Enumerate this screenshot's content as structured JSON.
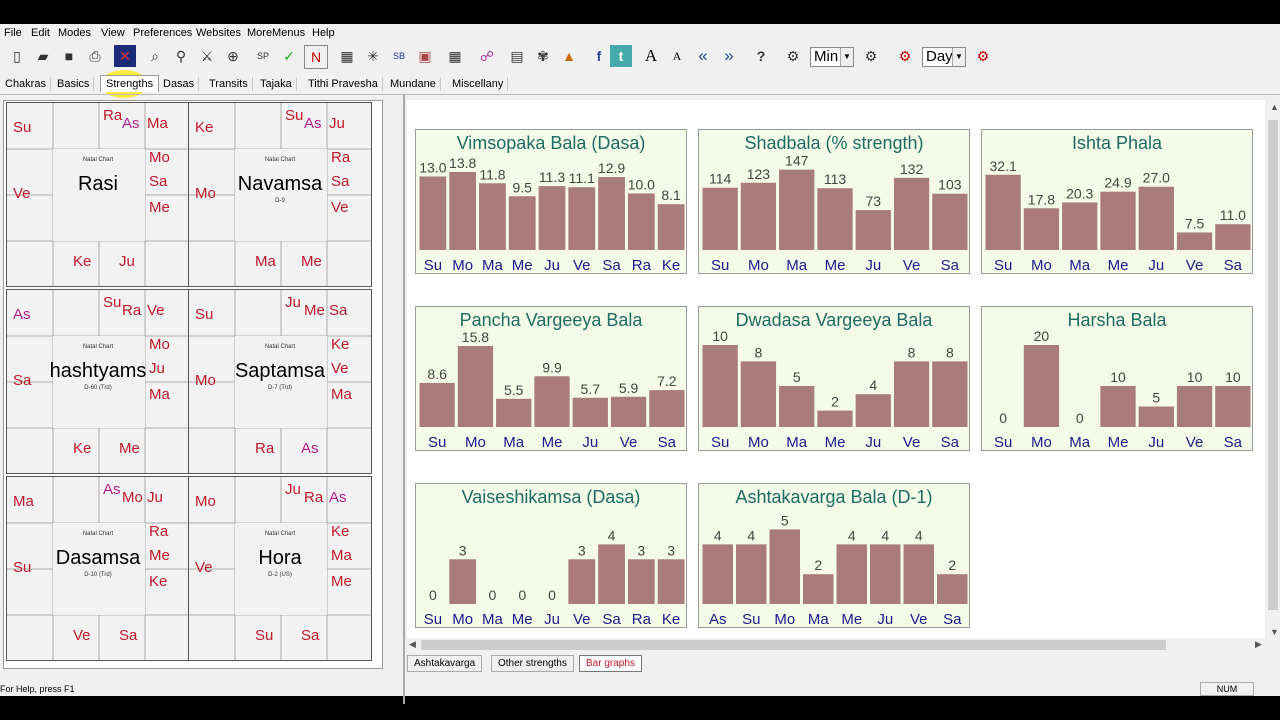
{
  "menu": [
    "File",
    "Edit",
    "Modes",
    "View",
    "Preferences",
    "Websites",
    "MoreMenus",
    "Help"
  ],
  "toolbar": {
    "min_label": "Min",
    "day_label": "Day",
    "font_big": "A",
    "font_small": "A",
    "nav_prev": "«",
    "nav_next": "»",
    "help": "?"
  },
  "tabs": [
    "Chakras",
    "Basics",
    "Strengths",
    "Dasas",
    "Transits",
    "Tajaka",
    "Tithi Pravesha",
    "Mundane",
    "Miscellany"
  ],
  "active_tab": "Strengths",
  "charts": [
    {
      "name": "Rasi",
      "sub": "",
      "nc": "Natal Chart",
      "planets": [
        {
          "t": "Ra",
          "c": "pink"
        },
        {
          "t": "As",
          "c": "mag"
        },
        {
          "t": "Ma",
          "c": "pink"
        },
        {
          "t": "Mo",
          "c": "pink"
        },
        {
          "t": "Sa",
          "c": "pink"
        },
        {
          "t": "Me",
          "c": "pink"
        },
        {
          "t": "Su",
          "c": "pink"
        },
        {
          "t": "Ve",
          "c": "pink"
        },
        {
          "t": "Ke",
          "c": "pink"
        },
        {
          "t": "Ju",
          "c": "pink"
        }
      ]
    },
    {
      "name": "Navamsa",
      "sub": "D-9",
      "nc": "Natal Chart",
      "planets": [
        {
          "t": "Su",
          "c": "pink"
        },
        {
          "t": "As",
          "c": "mag"
        },
        {
          "t": "Ju",
          "c": "pink"
        },
        {
          "t": "Ra",
          "c": "pink"
        },
        {
          "t": "Sa",
          "c": "pink"
        },
        {
          "t": "Ve",
          "c": "pink"
        },
        {
          "t": "Ke",
          "c": "pink"
        },
        {
          "t": "Mo",
          "c": "pink"
        },
        {
          "t": "Ma",
          "c": "pink"
        },
        {
          "t": "Me",
          "c": "pink"
        }
      ]
    },
    {
      "name": "hashtyams",
      "sub": "D-60 (Trd)",
      "nc": "Natal Chart",
      "planets": [
        {
          "t": "Su",
          "c": "pink"
        },
        {
          "t": "Ra",
          "c": "pink"
        },
        {
          "t": "Ve",
          "c": "pink"
        },
        {
          "t": "Mo",
          "c": "pink"
        },
        {
          "t": "Ju",
          "c": "pink"
        },
        {
          "t": "Ma",
          "c": "pink"
        },
        {
          "t": "As",
          "c": "mag"
        },
        {
          "t": "Sa",
          "c": "pink"
        },
        {
          "t": "Ke",
          "c": "pink"
        },
        {
          "t": "Me",
          "c": "pink"
        }
      ]
    },
    {
      "name": "Saptamsa",
      "sub": "D-7 (Trd)",
      "nc": "Natal Chart",
      "planets": [
        {
          "t": "Ju",
          "c": "pink"
        },
        {
          "t": "Me",
          "c": "pink"
        },
        {
          "t": "Sa",
          "c": "pink"
        },
        {
          "t": "Ke",
          "c": "pink"
        },
        {
          "t": "Ve",
          "c": "pink"
        },
        {
          "t": "Ma",
          "c": "pink"
        },
        {
          "t": "Su",
          "c": "pink"
        },
        {
          "t": "Mo",
          "c": "pink"
        },
        {
          "t": "Ra",
          "c": "pink"
        },
        {
          "t": "As",
          "c": "mag"
        }
      ]
    },
    {
      "name": "Dasamsa",
      "sub": "D-10 (Trd)",
      "nc": "Natal Chart",
      "planets": [
        {
          "t": "As",
          "c": "mag"
        },
        {
          "t": "Mo",
          "c": "pink"
        },
        {
          "t": "Ju",
          "c": "pink"
        },
        {
          "t": "Ra",
          "c": "pink"
        },
        {
          "t": "Me",
          "c": "pink"
        },
        {
          "t": "Ke",
          "c": "pink"
        },
        {
          "t": "Ma",
          "c": "pink"
        },
        {
          "t": "Su",
          "c": "pink"
        },
        {
          "t": "Ve",
          "c": "pink"
        },
        {
          "t": "Sa",
          "c": "pink"
        }
      ]
    },
    {
      "name": "Hora",
      "sub": "D-2 (US)",
      "nc": "Natal Chart",
      "planets": [
        {
          "t": "Ju",
          "c": "pink"
        },
        {
          "t": "Ra",
          "c": "pink"
        },
        {
          "t": "As",
          "c": "mag"
        },
        {
          "t": "Ke",
          "c": "pink"
        },
        {
          "t": "Ma",
          "c": "pink"
        },
        {
          "t": "Me",
          "c": "pink"
        },
        {
          "t": "Mo",
          "c": "pink"
        },
        {
          "t": "Ve",
          "c": "pink"
        },
        {
          "t": "Su",
          "c": "pink"
        },
        {
          "t": "Sa",
          "c": "pink"
        }
      ]
    }
  ],
  "chart_data": [
    {
      "type": "bar",
      "title": "Vimsopaka Bala (Dasa)",
      "categories": [
        "Su",
        "Mo",
        "Ma",
        "Me",
        "Ju",
        "Ve",
        "Sa",
        "Ra",
        "Ke"
      ],
      "values": [
        13.0,
        13.8,
        11.8,
        9.5,
        11.3,
        11.1,
        12.9,
        10.0,
        8.1
      ],
      "labels": [
        "13.0",
        "13.8",
        "11.8",
        "9.5",
        "11.3",
        "11.1",
        "12.9",
        "10.0",
        "8.1"
      ],
      "ymax": 14.5
    },
    {
      "type": "bar",
      "title": "Shadbala (% strength)",
      "categories": [
        "Su",
        "Mo",
        "Ma",
        "Me",
        "Ju",
        "Ve",
        "Sa"
      ],
      "values": [
        114,
        123,
        147,
        113,
        73,
        132,
        103
      ],
      "labels": [
        "114",
        "123",
        "147",
        "113",
        "73",
        "132",
        "103"
      ],
      "ymax": 150
    },
    {
      "type": "bar",
      "title": "Ishta Phala",
      "categories": [
        "Su",
        "Mo",
        "Ma",
        "Me",
        "Ju",
        "Ve",
        "Sa"
      ],
      "values": [
        32.1,
        17.8,
        20.3,
        24.9,
        27.0,
        7.5,
        11.0
      ],
      "labels": [
        "32.1",
        "17.8",
        "20.3",
        "24.9",
        "27.0",
        "7.5",
        "11.0"
      ],
      "ymax": 35
    },
    {
      "type": "bar",
      "title": "Pancha Vargeeya Bala",
      "categories": [
        "Su",
        "Mo",
        "Ma",
        "Me",
        "Ju",
        "Ve",
        "Sa"
      ],
      "values": [
        8.6,
        15.8,
        5.5,
        9.9,
        5.7,
        5.9,
        7.2
      ],
      "labels": [
        "8.6",
        "15.8",
        "5.5",
        "9.9",
        "5.7",
        "5.9",
        "7.2"
      ],
      "ymax": 16
    },
    {
      "type": "bar",
      "title": "Dwadasa Vargeeya Bala",
      "categories": [
        "Su",
        "Mo",
        "Ma",
        "Me",
        "Ju",
        "Ve",
        "Sa"
      ],
      "values": [
        10,
        8,
        5,
        2,
        4,
        8,
        8
      ],
      "labels": [
        "10",
        "8",
        "5",
        "2",
        "4",
        "8",
        "8"
      ],
      "ymax": 10
    },
    {
      "type": "bar",
      "title": "Harsha Bala",
      "categories": [
        "Su",
        "Mo",
        "Ma",
        "Me",
        "Ju",
        "Ve",
        "Sa"
      ],
      "values": [
        0,
        20,
        0,
        10,
        5,
        10,
        10
      ],
      "labels": [
        "0",
        "20",
        "0",
        "10",
        "5",
        "10",
        "10"
      ],
      "ymax": 20
    },
    {
      "type": "bar",
      "title": "Vaiseshikamsa (Dasa)",
      "categories": [
        "Su",
        "Mo",
        "Ma",
        "Me",
        "Ju",
        "Ve",
        "Sa",
        "Ra",
        "Ke"
      ],
      "values": [
        0,
        3,
        0,
        0,
        0,
        3,
        4,
        3,
        3
      ],
      "labels": [
        "0",
        "3",
        "0",
        "0",
        "0",
        "3",
        "4",
        "3",
        "3"
      ],
      "ymax": 5.5
    },
    {
      "type": "bar",
      "title": "Ashtakavarga Bala (D-1)",
      "categories": [
        "As",
        "Su",
        "Mo",
        "Ma",
        "Me",
        "Ju",
        "Ve",
        "Sa"
      ],
      "values": [
        4,
        4,
        5,
        2,
        4,
        4,
        4,
        2
      ],
      "labels": [
        "4",
        "4",
        "5",
        "2",
        "4",
        "4",
        "4",
        "2"
      ],
      "ymax": 5.5
    }
  ],
  "bottom_tabs": [
    "Ashtakavarga",
    "Other strengths",
    "Bar graphs"
  ],
  "status": {
    "help": "For Help, press F1",
    "num": "NUM"
  },
  "colors": {
    "bar": "#a97b7b",
    "title": "#1e6b63",
    "axis_label": "#1a1a8c",
    "planet": "#c0182a",
    "asc": "#b0208a"
  }
}
